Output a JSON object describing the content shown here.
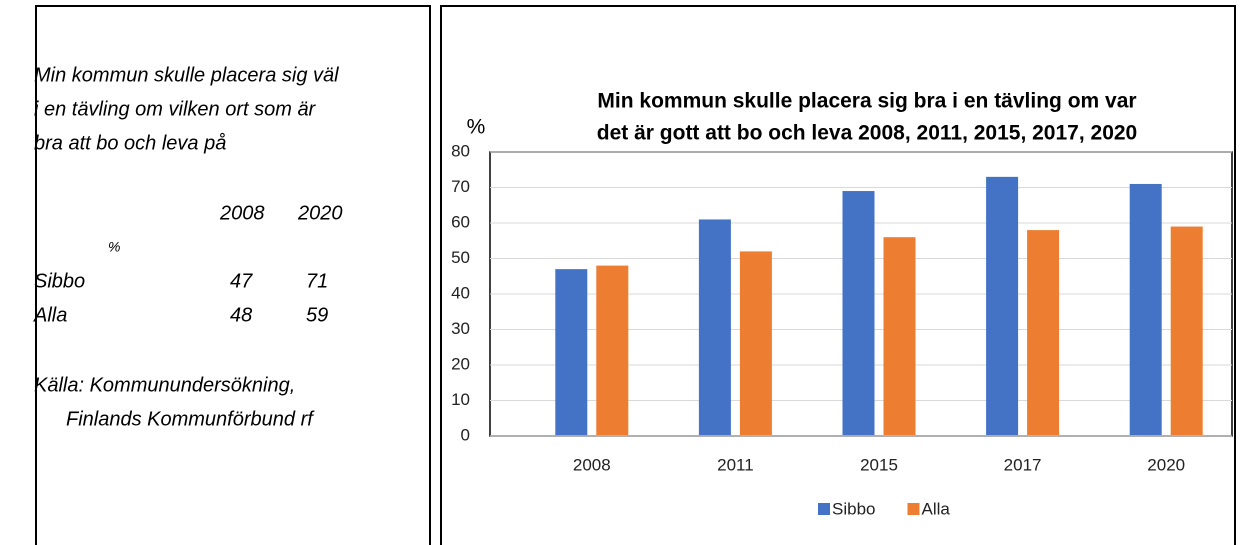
{
  "panel": {
    "lines": [
      "Min kommun skulle placera sig väl",
      "i en tävling om vilken ort som är",
      "bra att bo och leva på"
    ],
    "table": {
      "header": [
        "2008",
        "2020"
      ],
      "unit": "%",
      "rows": [
        [
          "Sibbo",
          "47",
          "71"
        ],
        [
          "Alla",
          "48",
          "59"
        ]
      ]
    },
    "source": [
      "Källa: Kommunundersökning,",
      "Finlands Kommunförbund rf"
    ]
  },
  "chart_data": {
    "type": "bar",
    "title": [
      "Min kommun skulle placera sig bra i en tävling om var",
      "det är gott att bo och leva 2008, 2011, 2015, 2017, 2020"
    ],
    "y_label": "%",
    "categories": [
      "2008",
      "2011",
      "2015",
      "2017",
      "2020"
    ],
    "series": [
      {
        "name": "Sibbo",
        "color": "#4472c4",
        "values": [
          47,
          61,
          69,
          73,
          71
        ]
      },
      {
        "name": "Alla",
        "color": "#ed7d31",
        "values": [
          48,
          52,
          56,
          58,
          59
        ]
      }
    ],
    "ylim": [
      0,
      80
    ],
    "yticks": [
      0,
      10,
      20,
      30,
      40,
      50,
      60,
      70,
      80
    ],
    "grid": true,
    "legend": "bottom"
  }
}
